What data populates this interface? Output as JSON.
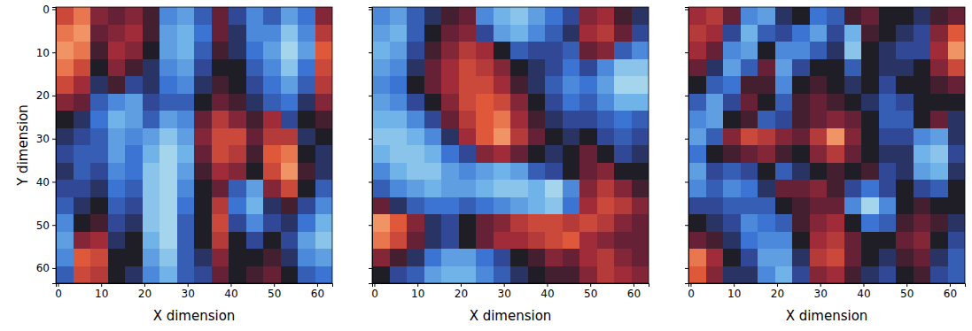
{
  "chart_data": [
    {
      "type": "heatmap",
      "x_label": "X dimension",
      "y_label": "Y dimension",
      "xlim": [
        -0.5,
        63.5
      ],
      "ylim": [
        63.5,
        -0.5
      ],
      "xticks": [
        0,
        10,
        20,
        30,
        40,
        50,
        60
      ],
      "yticks": [
        0,
        10,
        20,
        30,
        40,
        50,
        60
      ],
      "zlim": [
        -1,
        1
      ],
      "x_bins": [
        -0.5,
        3.5,
        7.5,
        11.5,
        15.5,
        19.5,
        23.5,
        27.5,
        31.5,
        35.5,
        39.5,
        43.5,
        47.5,
        51.5,
        55.5,
        59.5,
        63.5
      ],
      "y_bins": [
        -0.5,
        3.5,
        7.5,
        11.5,
        15.5,
        19.5,
        23.5,
        27.5,
        31.5,
        35.5,
        39.5,
        43.5,
        47.5,
        51.5,
        55.5,
        59.5,
        63.5
      ],
      "z": [
        [
          0.6,
          0.8,
          0.3,
          0.2,
          0.3,
          0.1,
          -0.5,
          -0.6,
          -0.3,
          0.2,
          -0.2,
          -0.5,
          -0.3,
          -0.6,
          -0.4,
          0.3
        ],
        [
          0.8,
          0.9,
          0.2,
          0.3,
          0.4,
          0.1,
          -0.6,
          -0.7,
          -0.4,
          0.2,
          -0.1,
          -0.5,
          -0.5,
          -0.8,
          -0.5,
          0.5
        ],
        [
          0.9,
          0.8,
          0.1,
          0.4,
          0.3,
          0,
          -0.6,
          -0.7,
          -0.3,
          0.1,
          -0.1,
          -0.4,
          -0.6,
          -0.9,
          -0.6,
          0.7
        ],
        [
          0.8,
          0.6,
          0,
          0.3,
          0.1,
          -0.1,
          -0.5,
          -0.6,
          -0.2,
          0,
          0,
          -0.3,
          -0.5,
          -0.8,
          -0.4,
          0.6
        ],
        [
          0.6,
          0.4,
          -0.1,
          0.1,
          -0.2,
          -0.1,
          -0.4,
          -0.5,
          -0.1,
          0.1,
          0,
          -0.2,
          -0.4,
          -0.6,
          -0.3,
          0.5
        ],
        [
          0.3,
          0.2,
          -0.3,
          -0.5,
          -0.6,
          -0.2,
          -0.3,
          -0.3,
          0,
          0.2,
          0.1,
          -0.1,
          -0.3,
          -0.4,
          -0.1,
          0.3
        ],
        [
          0,
          -0.1,
          -0.4,
          -0.7,
          -0.6,
          -0.3,
          -0.6,
          -0.5,
          0.2,
          0.5,
          0.3,
          0.1,
          0.4,
          -0.2,
          0,
          0.1
        ],
        [
          -0.1,
          -0.2,
          -0.3,
          -0.6,
          -0.5,
          -0.6,
          -0.8,
          -0.6,
          0.3,
          0.6,
          0.6,
          0.2,
          0.5,
          0.5,
          -0.1,
          0
        ],
        [
          -0.2,
          -0.3,
          -0.3,
          -0.6,
          -0.4,
          -0.7,
          -0.9,
          -0.7,
          0.2,
          0.6,
          0.5,
          0.1,
          0.7,
          0.8,
          0,
          -0.1
        ],
        [
          -0.1,
          -0.3,
          -0.2,
          -0.5,
          -0.4,
          -0.8,
          -0.9,
          -0.6,
          0.1,
          0.4,
          0.3,
          0,
          0.6,
          0.9,
          0.1,
          -0.1
        ],
        [
          -0.2,
          -0.2,
          -0.1,
          -0.4,
          -0.3,
          -0.8,
          -0.9,
          -0.5,
          0,
          0.2,
          -0.3,
          -0.6,
          0.3,
          0.6,
          0,
          -0.3
        ],
        [
          -0.3,
          -0.1,
          0,
          -0.3,
          -0.2,
          -0.8,
          -0.9,
          -0.4,
          0,
          0.5,
          -0.4,
          -0.7,
          -0.1,
          0.1,
          -0.2,
          -0.5
        ],
        [
          -0.5,
          0,
          0.1,
          -0.2,
          -0.1,
          -0.8,
          -0.9,
          -0.3,
          0,
          0.6,
          -0.2,
          -0.5,
          -0.2,
          -0.1,
          -0.4,
          -0.7
        ],
        [
          -0.6,
          0.3,
          0.4,
          -0.1,
          0,
          -0.7,
          -0.9,
          -0.3,
          0,
          0.5,
          0,
          -0.2,
          0,
          -0.2,
          -0.6,
          -0.8
        ],
        [
          -0.5,
          0.7,
          0.6,
          0,
          0,
          -0.6,
          -0.8,
          -0.3,
          -0.1,
          0.3,
          0,
          0,
          0.1,
          -0.1,
          -0.5,
          -0.6
        ],
        [
          -0.3,
          0.6,
          0.5,
          0,
          -0.1,
          -0.5,
          -0.7,
          -0.3,
          -0.2,
          0.2,
          0,
          0.1,
          0.2,
          0,
          -0.3,
          -0.4
        ]
      ]
    },
    {
      "type": "heatmap",
      "x_label": "X dimension",
      "tick_labels": "x",
      "xlim": [
        -0.5,
        63.5
      ],
      "ylim": [
        63.5,
        -0.5
      ],
      "xticks": [
        0,
        10,
        20,
        30,
        40,
        50,
        60
      ],
      "yticks": [
        0,
        10,
        20,
        30,
        40,
        50,
        60
      ],
      "zlim": [
        -1,
        1
      ],
      "x_bins": [
        -0.5,
        3.5,
        7.5,
        11.5,
        15.5,
        19.5,
        23.5,
        27.5,
        31.5,
        35.5,
        39.5,
        43.5,
        47.5,
        51.5,
        55.5,
        59.5,
        63.5
      ],
      "y_bins": [
        -0.5,
        3.5,
        7.5,
        11.5,
        15.5,
        19.5,
        23.5,
        27.5,
        31.5,
        35.5,
        39.5,
        43.5,
        47.5,
        51.5,
        55.5,
        59.5,
        63.5
      ],
      "z": [
        [
          -0.5,
          -0.6,
          -0.3,
          -0.1,
          0.1,
          0.2,
          -0.5,
          -0.7,
          -0.8,
          -0.6,
          -0.4,
          -0.2,
          0.3,
          0.4,
          0.1,
          -0.1
        ],
        [
          -0.6,
          -0.7,
          -0.3,
          0,
          0.2,
          0.3,
          -0.2,
          -0.6,
          -0.7,
          -0.5,
          -0.3,
          -0.1,
          0.4,
          0.5,
          0.2,
          -0.2
        ],
        [
          -0.7,
          -0.6,
          -0.2,
          0.1,
          0.3,
          0.5,
          0.4,
          0,
          -0.3,
          -0.2,
          -0.2,
          -0.3,
          0.2,
          0.3,
          -0.3,
          -0.5
        ],
        [
          -0.6,
          -0.5,
          -0.1,
          0.2,
          0.4,
          0.6,
          0.5,
          0.3,
          0,
          -0.1,
          -0.2,
          -0.4,
          -0.2,
          -0.5,
          -0.8,
          -0.8
        ],
        [
          -0.5,
          -0.4,
          0,
          0.2,
          0.4,
          0.6,
          0.6,
          0.4,
          0.1,
          -0.1,
          -0.3,
          -0.5,
          -0.4,
          -0.6,
          -0.9,
          -0.9
        ],
        [
          -0.6,
          -0.5,
          -0.2,
          0,
          0.3,
          0.6,
          0.7,
          0.6,
          0.3,
          0,
          -0.2,
          -0.4,
          -0.3,
          -0.5,
          -0.7,
          -0.7
        ],
        [
          -0.7,
          -0.7,
          -0.5,
          -0.2,
          0.2,
          0.5,
          0.7,
          0.8,
          0.4,
          0.1,
          -0.1,
          -0.2,
          -0.2,
          -0.3,
          -0.4,
          -0.3
        ],
        [
          -0.8,
          -0.8,
          -0.7,
          -0.5,
          -0.1,
          0.4,
          0.7,
          0.9,
          0.5,
          0.2,
          0,
          -0.1,
          0,
          -0.2,
          -0.3,
          -0.2
        ],
        [
          -0.7,
          -0.8,
          -0.8,
          -0.7,
          -0.4,
          -0.2,
          0.3,
          0.4,
          0.2,
          0,
          -0.1,
          0,
          0.2,
          0,
          -0.2,
          -0.1
        ],
        [
          -0.5,
          -0.7,
          -0.8,
          -0.8,
          -0.6,
          -0.5,
          -0.6,
          -0.7,
          -0.6,
          -0.3,
          -0.2,
          0,
          0.2,
          0.3,
          0,
          0
        ],
        [
          -0.3,
          -0.5,
          -0.6,
          -0.7,
          -0.6,
          -0.6,
          -0.7,
          -0.8,
          -0.8,
          -0.7,
          -0.9,
          -0.5,
          0.3,
          0.5,
          0.3,
          0.1
        ],
        [
          0.2,
          -0.1,
          -0.3,
          -0.4,
          -0.4,
          -0.3,
          -0.4,
          -0.5,
          -0.6,
          -0.7,
          -0.8,
          -0.4,
          0.4,
          0.6,
          0.5,
          0.3
        ],
        [
          0.9,
          0.7,
          0.3,
          -0.1,
          -0.2,
          0,
          0.2,
          0.3,
          0.5,
          0.6,
          0.6,
          0.5,
          0.6,
          0.5,
          0.3,
          0.2
        ],
        [
          0.8,
          0.6,
          0.2,
          -0.1,
          -0.2,
          0,
          0.2,
          0.4,
          0.4,
          0.5,
          0.6,
          0.7,
          0.4,
          0.3,
          0.2,
          0.2
        ],
        [
          0.3,
          0.1,
          -0.1,
          -0.4,
          -0.6,
          -0.6,
          -0.4,
          -0.2,
          0,
          0.1,
          0.3,
          0.2,
          0.4,
          0.5,
          0.3,
          0.2
        ],
        [
          0,
          -0.2,
          -0.3,
          -0.6,
          -0.7,
          -0.7,
          -0.5,
          -0.3,
          -0.1,
          0,
          0.1,
          0.1,
          0.3,
          0.5,
          0.4,
          0.3
        ]
      ]
    },
    {
      "type": "heatmap",
      "x_label": "X dimension",
      "tick_labels": "x",
      "xlim": [
        -0.5,
        63.5
      ],
      "ylim": [
        63.5,
        -0.5
      ],
      "xticks": [
        0,
        10,
        20,
        30,
        40,
        50,
        60
      ],
      "yticks": [
        0,
        10,
        20,
        30,
        40,
        50,
        60
      ],
      "zlim": [
        -1,
        1
      ],
      "x_bins": [
        -0.5,
        3.5,
        7.5,
        11.5,
        15.5,
        19.5,
        23.5,
        27.5,
        31.5,
        35.5,
        39.5,
        43.5,
        47.5,
        51.5,
        55.5,
        59.5,
        63.5
      ],
      "y_bins": [
        -0.5,
        3.5,
        7.5,
        11.5,
        15.5,
        19.5,
        23.5,
        27.5,
        31.5,
        35.5,
        39.5,
        43.5,
        47.5,
        51.5,
        55.5,
        59.5,
        63.5
      ],
      "z": [
        [
          0.4,
          0.5,
          0.2,
          -0.5,
          -0.6,
          -0.1,
          0,
          -0.4,
          -0.3,
          0.1,
          0.2,
          0,
          0,
          -0.1,
          0.1,
          0.2
        ],
        [
          0.5,
          0.4,
          -0.2,
          -0.7,
          -0.3,
          -0.2,
          -0.4,
          -0.6,
          -0.2,
          -0.7,
          0.1,
          0,
          -0.1,
          -0.2,
          0.3,
          0.7
        ],
        [
          0.4,
          0.2,
          -0.5,
          -0.6,
          0,
          -0.5,
          -0.5,
          -0.3,
          -0.1,
          -0.8,
          0,
          -0.1,
          -0.2,
          -0.2,
          0.4,
          0.9
        ],
        [
          0.2,
          -0.1,
          -0.6,
          -0.3,
          0.2,
          -0.6,
          -0.2,
          0,
          0,
          -0.3,
          0,
          -0.1,
          -0.1,
          0,
          0.3,
          0.6
        ],
        [
          0,
          -0.3,
          -0.4,
          0.1,
          0.1,
          -0.5,
          0,
          0.1,
          0,
          -0.1,
          0,
          -0.2,
          0,
          0,
          0.1,
          0.2
        ],
        [
          -0.3,
          -0.6,
          -0.2,
          0.2,
          0,
          -0.3,
          0.1,
          0.2,
          0.1,
          0,
          -0.1,
          -0.3,
          -0.2,
          0,
          0,
          0
        ],
        [
          -0.5,
          -0.6,
          0,
          0.1,
          -0.3,
          -0.2,
          0.1,
          0.2,
          0.3,
          0.2,
          0,
          -0.3,
          -0.3,
          0,
          0.2,
          -0.1
        ],
        [
          -0.6,
          -0.3,
          0.3,
          0.6,
          0.5,
          0.3,
          0.2,
          0.5,
          0.9,
          0.3,
          0,
          -0.2,
          -0.2,
          -0.5,
          -0.6,
          -0.1
        ],
        [
          -0.4,
          0,
          0.1,
          0.2,
          0.3,
          0.1,
          0,
          0.3,
          0.5,
          0.2,
          0,
          -0.1,
          -0.1,
          -0.7,
          -0.8,
          -0.2
        ],
        [
          -0.6,
          -0.2,
          -0.3,
          -0.2,
          0,
          -0.3,
          -0.1,
          0,
          0.1,
          0,
          0.1,
          -0.2,
          -0.1,
          -0.6,
          -0.7,
          -0.1
        ],
        [
          -0.5,
          -0.3,
          -0.5,
          -0.4,
          -0.1,
          0.2,
          0.2,
          0.3,
          0.1,
          -0.2,
          -0.4,
          -0.2,
          0,
          -0.2,
          -0.3,
          0
        ],
        [
          -0.2,
          -0.2,
          -0.3,
          -0.3,
          -0.3,
          0,
          0.1,
          0.2,
          0.2,
          -0.5,
          -0.9,
          -0.5,
          0,
          0.1,
          0,
          0
        ],
        [
          0,
          -0.1,
          -0.2,
          -0.5,
          -0.4,
          -0.3,
          0.1,
          0.3,
          0.4,
          0,
          -0.4,
          -0.3,
          0.1,
          0.2,
          0.1,
          -0.1
        ],
        [
          0.2,
          0.1,
          -0.1,
          -0.4,
          -0.5,
          -0.5,
          0,
          0.4,
          0.5,
          0.2,
          0,
          0,
          0.2,
          0.3,
          0,
          -0.2
        ],
        [
          0.8,
          0.4,
          0,
          -0.2,
          -0.6,
          -0.6,
          -0.1,
          0.5,
          0.6,
          0.2,
          0,
          -0.1,
          0.1,
          0.2,
          -0.1,
          -0.3
        ],
        [
          0.7,
          0.3,
          -0.1,
          -0.1,
          -0.5,
          -0.7,
          -0.2,
          0.3,
          0.4,
          0.1,
          -0.1,
          -0.2,
          0,
          0.1,
          -0.2,
          -0.3
        ]
      ]
    }
  ]
}
